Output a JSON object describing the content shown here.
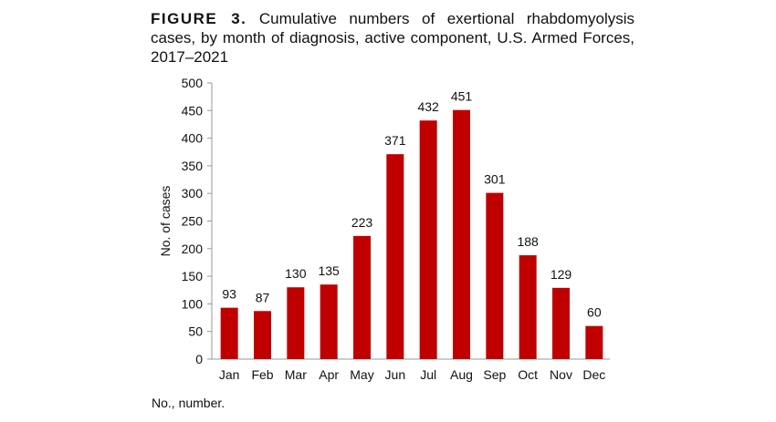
{
  "chart_data": {
    "type": "bar",
    "title_prefix": "FIGURE 3.",
    "title": "Cumulative numbers of exertional rhabdomyolysis cases, by month of diagnosis, active component, U.S. Armed Forces, 2017–2021",
    "xlabel": "",
    "ylabel": "No. of cases",
    "categories": [
      "Jan",
      "Feb",
      "Mar",
      "Apr",
      "May",
      "Jun",
      "Jul",
      "Aug",
      "Sep",
      "Oct",
      "Nov",
      "Dec"
    ],
    "values": [
      93,
      87,
      130,
      135,
      223,
      371,
      432,
      451,
      301,
      188,
      129,
      60
    ],
    "ylim": [
      0,
      500
    ],
    "yticks": [
      0,
      50,
      100,
      150,
      200,
      250,
      300,
      350,
      400,
      450,
      500
    ],
    "grid": false,
    "legend": "none",
    "data_labels": true,
    "bar_color": "#c00000",
    "note": "No., number."
  }
}
